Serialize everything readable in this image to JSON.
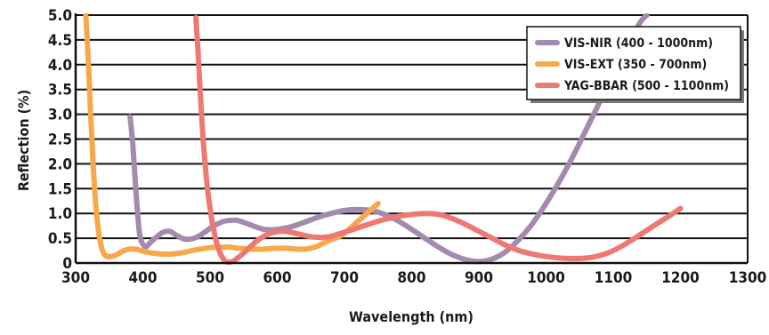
{
  "chart_data": {
    "type": "line",
    "xlabel": "Wavelength (nm)",
    "ylabel": "Reflection (%)",
    "xlim": [
      300,
      1300
    ],
    "ylim": [
      0,
      5.0
    ],
    "x_ticks": [
      "300",
      "400",
      "500",
      "600",
      "700",
      "800",
      "900",
      "1000",
      "1100",
      "1200",
      "1300"
    ],
    "y_ticks": [
      "0",
      "0.5",
      "1.0",
      "1.5",
      "2.0",
      "2.5",
      "3.0",
      "3.5",
      "4.0",
      "4.5",
      "5.0"
    ],
    "grid": "horizontal",
    "legend_position": "top-right",
    "series": [
      {
        "name": "VIS-NIR (400 - 1000nm)",
        "color": "#a48aac",
        "points": [
          [
            381,
            2.95
          ],
          [
            385,
            2.4
          ],
          [
            390,
            1.4
          ],
          [
            395,
            0.6
          ],
          [
            400,
            0.38
          ],
          [
            405,
            0.33
          ],
          [
            410,
            0.4
          ],
          [
            420,
            0.52
          ],
          [
            430,
            0.62
          ],
          [
            440,
            0.64
          ],
          [
            450,
            0.56
          ],
          [
            460,
            0.49
          ],
          [
            470,
            0.48
          ],
          [
            480,
            0.52
          ],
          [
            490,
            0.6
          ],
          [
            500,
            0.7
          ],
          [
            510,
            0.78
          ],
          [
            520,
            0.84
          ],
          [
            530,
            0.86
          ],
          [
            540,
            0.86
          ],
          [
            550,
            0.82
          ],
          [
            560,
            0.77
          ],
          [
            570,
            0.72
          ],
          [
            580,
            0.68
          ],
          [
            590,
            0.67
          ],
          [
            600,
            0.68
          ],
          [
            620,
            0.73
          ],
          [
            640,
            0.82
          ],
          [
            660,
            0.92
          ],
          [
            680,
            1.0
          ],
          [
            700,
            1.06
          ],
          [
            720,
            1.08
          ],
          [
            740,
            1.06
          ],
          [
            760,
            0.98
          ],
          [
            780,
            0.85
          ],
          [
            800,
            0.68
          ],
          [
            820,
            0.5
          ],
          [
            840,
            0.32
          ],
          [
            860,
            0.17
          ],
          [
            880,
            0.07
          ],
          [
            900,
            0.03
          ],
          [
            920,
            0.08
          ],
          [
            940,
            0.23
          ],
          [
            960,
            0.48
          ],
          [
            980,
            0.8
          ],
          [
            1000,
            1.2
          ],
          [
            1020,
            1.65
          ],
          [
            1040,
            2.15
          ],
          [
            1060,
            2.7
          ],
          [
            1080,
            3.25
          ],
          [
            1100,
            3.8
          ],
          [
            1120,
            4.35
          ],
          [
            1140,
            4.85
          ],
          [
            1150,
            5.0
          ]
        ]
      },
      {
        "name": "VIS-EXT (350 - 700nm)",
        "color": "#f8a84a",
        "points": [
          [
            315,
            5.0
          ],
          [
            318,
            4.3
          ],
          [
            322,
            3.1
          ],
          [
            326,
            2.0
          ],
          [
            330,
            1.15
          ],
          [
            335,
            0.55
          ],
          [
            340,
            0.25
          ],
          [
            345,
            0.14
          ],
          [
            350,
            0.13
          ],
          [
            360,
            0.16
          ],
          [
            370,
            0.24
          ],
          [
            380,
            0.28
          ],
          [
            390,
            0.28
          ],
          [
            400,
            0.24
          ],
          [
            410,
            0.21
          ],
          [
            420,
            0.19
          ],
          [
            430,
            0.18
          ],
          [
            440,
            0.18
          ],
          [
            450,
            0.19
          ],
          [
            460,
            0.21
          ],
          [
            470,
            0.24
          ],
          [
            480,
            0.27
          ],
          [
            490,
            0.29
          ],
          [
            500,
            0.31
          ],
          [
            510,
            0.32
          ],
          [
            520,
            0.32
          ],
          [
            530,
            0.32
          ],
          [
            540,
            0.3
          ],
          [
            550,
            0.29
          ],
          [
            560,
            0.28
          ],
          [
            570,
            0.28
          ],
          [
            580,
            0.28
          ],
          [
            590,
            0.29
          ],
          [
            600,
            0.3
          ],
          [
            610,
            0.3
          ],
          [
            620,
            0.29
          ],
          [
            630,
            0.28
          ],
          [
            640,
            0.28
          ],
          [
            650,
            0.3
          ],
          [
            660,
            0.34
          ],
          [
            670,
            0.41
          ],
          [
            680,
            0.47
          ],
          [
            690,
            0.52
          ],
          [
            700,
            0.6
          ],
          [
            710,
            0.72
          ],
          [
            720,
            0.84
          ],
          [
            730,
            0.96
          ],
          [
            740,
            1.08
          ],
          [
            750,
            1.2
          ]
        ]
      },
      {
        "name": "YAG-BBAR (500 - 1100nm)",
        "color": "#ec7a72",
        "points": [
          [
            479,
            4.95
          ],
          [
            482,
            4.3
          ],
          [
            486,
            3.3
          ],
          [
            490,
            2.45
          ],
          [
            495,
            1.65
          ],
          [
            500,
            1.1
          ],
          [
            505,
            0.7
          ],
          [
            510,
            0.4
          ],
          [
            515,
            0.2
          ],
          [
            520,
            0.08
          ],
          [
            525,
            0.02
          ],
          [
            530,
            0.02
          ],
          [
            535,
            0.04
          ],
          [
            540,
            0.09
          ],
          [
            550,
            0.2
          ],
          [
            560,
            0.33
          ],
          [
            570,
            0.45
          ],
          [
            580,
            0.54
          ],
          [
            590,
            0.6
          ],
          [
            600,
            0.63
          ],
          [
            610,
            0.64
          ],
          [
            620,
            0.62
          ],
          [
            630,
            0.59
          ],
          [
            640,
            0.56
          ],
          [
            650,
            0.53
          ],
          [
            660,
            0.52
          ],
          [
            670,
            0.52
          ],
          [
            680,
            0.54
          ],
          [
            690,
            0.58
          ],
          [
            700,
            0.62
          ],
          [
            720,
            0.71
          ],
          [
            740,
            0.8
          ],
          [
            760,
            0.88
          ],
          [
            780,
            0.94
          ],
          [
            800,
            0.98
          ],
          [
            820,
            1.0
          ],
          [
            840,
            0.98
          ],
          [
            860,
            0.9
          ],
          [
            880,
            0.78
          ],
          [
            900,
            0.64
          ],
          [
            920,
            0.5
          ],
          [
            940,
            0.36
          ],
          [
            960,
            0.25
          ],
          [
            980,
            0.18
          ],
          [
            1000,
            0.13
          ],
          [
            1020,
            0.1
          ],
          [
            1040,
            0.09
          ],
          [
            1060,
            0.1
          ],
          [
            1080,
            0.15
          ],
          [
            1100,
            0.25
          ],
          [
            1120,
            0.4
          ],
          [
            1140,
            0.57
          ],
          [
            1160,
            0.75
          ],
          [
            1180,
            0.92
          ],
          [
            1200,
            1.1
          ]
        ]
      }
    ]
  }
}
